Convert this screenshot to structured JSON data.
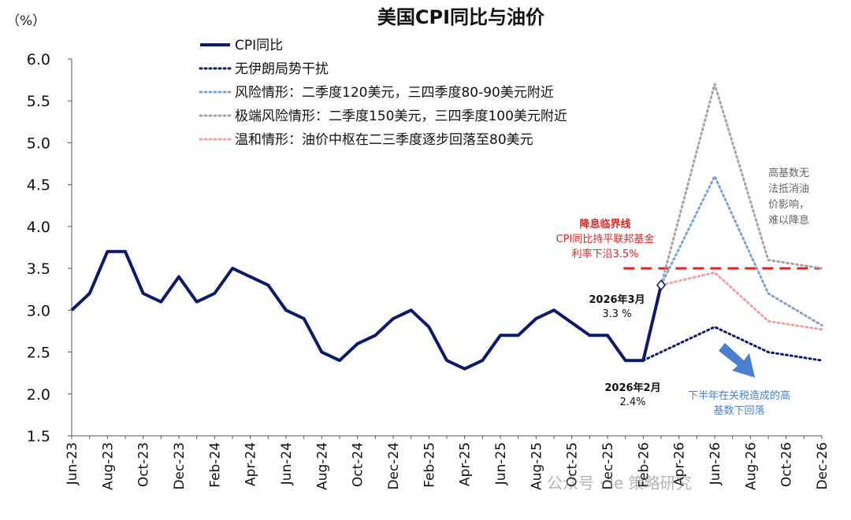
{
  "chart_data": {
    "type": "line",
    "title": "美国CPI同比与油价",
    "ylabel": "（%）",
    "ylim": [
      1.5,
      6.0
    ],
    "yticks": [
      "6.0",
      "5.5",
      "5.0",
      "4.5",
      "4.0",
      "3.5",
      "3.0",
      "2.5",
      "2.0",
      "1.5"
    ],
    "x_labels": [
      "Jun-23",
      "Aug-23",
      "Oct-23",
      "Dec-23",
      "Feb-24",
      "Apr-24",
      "Jun-24",
      "Aug-24",
      "Oct-24",
      "Dec-24",
      "Feb-25",
      "Apr-25",
      "Jun-25",
      "Aug-25",
      "Oct-25",
      "Dec-25",
      "Feb-26",
      "Apr-26",
      "Jun-26",
      "Aug-26",
      "Oct-26",
      "Dec-26"
    ],
    "x_months": [
      "2023-06",
      "2023-07",
      "2023-08",
      "2023-09",
      "2023-10",
      "2023-11",
      "2023-12",
      "2024-01",
      "2024-02",
      "2024-03",
      "2024-04",
      "2024-05",
      "2024-06",
      "2024-07",
      "2024-08",
      "2024-09",
      "2024-10",
      "2024-11",
      "2024-12",
      "2025-01",
      "2025-02",
      "2025-03",
      "2025-04",
      "2025-05",
      "2025-06",
      "2025-07",
      "2025-08",
      "2025-09",
      "2025-10",
      "2025-11",
      "2025-12",
      "2026-01",
      "2026-02",
      "2026-03",
      "2026-04",
      "2026-05",
      "2026-06",
      "2026-07",
      "2026-08",
      "2026-09",
      "2026-10",
      "2026-11",
      "2026-12"
    ],
    "legend_position": "top",
    "grid": false,
    "series": [
      {
        "name": "CPI同比",
        "style": "solid",
        "color": "#0c1a6e",
        "points": [
          [
            "2023-06",
            3.0
          ],
          [
            "2023-07",
            3.2
          ],
          [
            "2023-08",
            3.7
          ],
          [
            "2023-09",
            3.7
          ],
          [
            "2023-10",
            3.2
          ],
          [
            "2023-11",
            3.1
          ],
          [
            "2023-12",
            3.4
          ],
          [
            "2024-01",
            3.1
          ],
          [
            "2024-02",
            3.2
          ],
          [
            "2024-03",
            3.5
          ],
          [
            "2024-04",
            3.4
          ],
          [
            "2024-05",
            3.3
          ],
          [
            "2024-06",
            3.0
          ],
          [
            "2024-07",
            2.9
          ],
          [
            "2024-08",
            2.5
          ],
          [
            "2024-09",
            2.4
          ],
          [
            "2024-10",
            2.6
          ],
          [
            "2024-11",
            2.7
          ],
          [
            "2024-12",
            2.9
          ],
          [
            "2025-01",
            3.0
          ],
          [
            "2025-02",
            2.8
          ],
          [
            "2025-03",
            2.4
          ],
          [
            "2025-04",
            2.3
          ],
          [
            "2025-05",
            2.4
          ],
          [
            "2025-06",
            2.7
          ],
          [
            "2025-07",
            2.7
          ],
          [
            "2025-08",
            2.9
          ],
          [
            "2025-09",
            3.0
          ],
          [
            "2025-10",
            2.85
          ],
          [
            "2025-11",
            2.7
          ],
          [
            "2025-12",
            2.7
          ],
          [
            "2026-01",
            2.4
          ],
          [
            "2026-02",
            2.4
          ],
          [
            "2026-03",
            3.3
          ]
        ]
      },
      {
        "name": "无伊朗局势干扰",
        "style": "dotted",
        "color": "#0c1a6e",
        "points": [
          [
            "2026-02",
            2.4
          ],
          [
            "2026-06",
            2.8
          ],
          [
            "2026-09",
            2.5
          ],
          [
            "2026-12",
            2.4
          ]
        ]
      },
      {
        "name": "风险情形：二季度120美元，三四季度80-90美元附近",
        "style": "dotted",
        "color": "#7ea3d6",
        "points": [
          [
            "2026-03",
            3.3
          ],
          [
            "2026-06",
            4.6
          ],
          [
            "2026-09",
            3.2
          ],
          [
            "2026-12",
            2.82
          ]
        ]
      },
      {
        "name": "极端风险情形：二季度150美元，三四季度100美元附近",
        "style": "dotted",
        "color": "#a6a6a6",
        "points": [
          [
            "2026-03",
            3.3
          ],
          [
            "2026-06",
            5.7
          ],
          [
            "2026-09",
            3.6
          ],
          [
            "2026-12",
            3.5
          ]
        ]
      },
      {
        "name": "温和情形：油价中枢在二三季度逐步回落至80美元",
        "style": "dotted",
        "color": "#f4a0a0",
        "points": [
          [
            "2026-03",
            3.3
          ],
          [
            "2026-06",
            3.45
          ],
          [
            "2026-09",
            2.87
          ],
          [
            "2026-12",
            2.77
          ]
        ]
      }
    ],
    "threshold": {
      "y": 3.5,
      "from": "2026-02",
      "to": "2026-12",
      "color": "#e32323"
    },
    "marker": {
      "x": "2026-03",
      "y": 3.3
    },
    "annotations": {
      "threshold_title": "降息临界线",
      "threshold_line1": "CPI同比持平联邦基金",
      "threshold_line2": "利率下沿3.5%",
      "mar_label": "2026年3月",
      "mar_value": "3.3 %",
      "feb_label": "2026年2月",
      "feb_value": "2.4%",
      "high_base_lines": [
        "高基数无",
        "法抵消油",
        "价影响，",
        "难以降息"
      ],
      "fall_lines": [
        "下半年在关税造成的高",
        "基数下回落"
      ],
      "arrow_color": "#4a7fd0"
    }
  },
  "watermark": "公众号 · Ie 策略研究"
}
